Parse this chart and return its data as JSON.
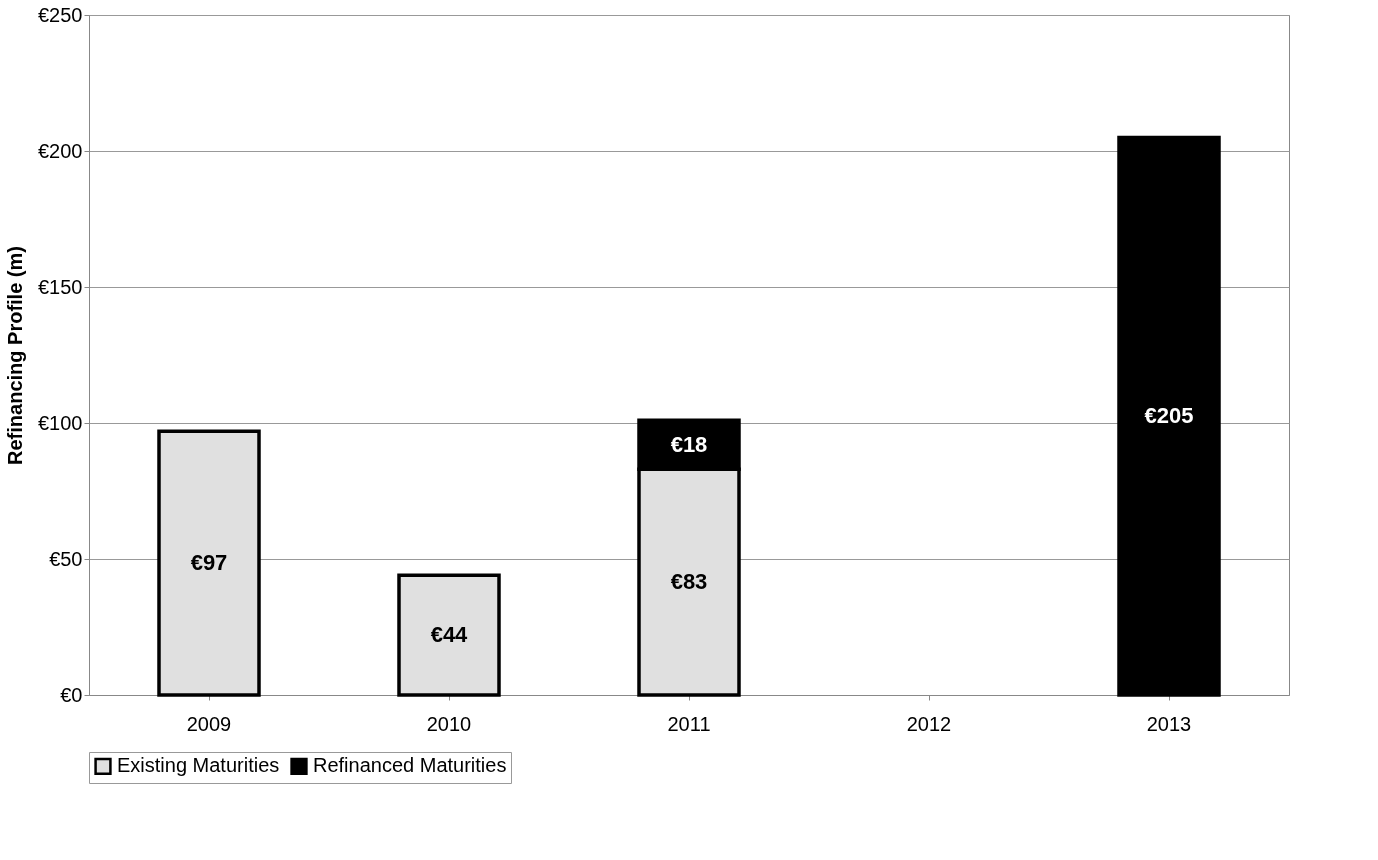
{
  "chart_data": {
    "type": "bar",
    "ylabel": "Refinancing Profile (m)",
    "categories": [
      "2009",
      "2010",
      "2011",
      "2012",
      "2013"
    ],
    "stacked": true,
    "series": [
      {
        "name": "Existing Maturities",
        "color": "#e0e0e0",
        "values": [
          97,
          44,
          83,
          null,
          null
        ],
        "value_labels": [
          "€97",
          "€44",
          "€83",
          null,
          null
        ]
      },
      {
        "name": "Refinanced Maturities",
        "color": "#000000",
        "values": [
          null,
          null,
          18,
          null,
          205
        ],
        "value_labels": [
          null,
          null,
          "€18",
          null,
          "€205"
        ]
      }
    ],
    "ylim": [
      0,
      250
    ],
    "yticks": [
      {
        "value": 0,
        "label": "€0"
      },
      {
        "value": 50,
        "label": "€50"
      },
      {
        "value": 100,
        "label": "€100"
      },
      {
        "value": 150,
        "label": "€150"
      },
      {
        "value": 200,
        "label": "€200"
      },
      {
        "value": 250,
        "label": "€250"
      }
    ],
    "grid": "y",
    "legend": "bottom"
  }
}
